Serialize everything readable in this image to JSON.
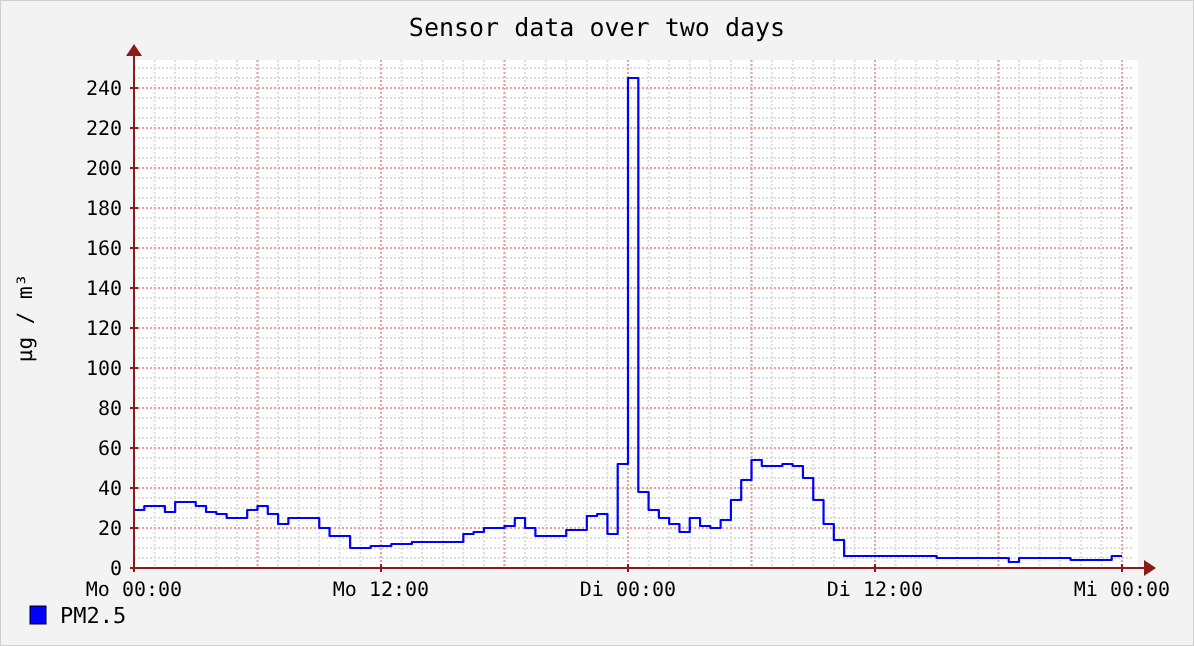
{
  "chart_data": {
    "type": "step",
    "title": "Sensor data over two days",
    "ylabel": "µg / m³",
    "categories": [
      "Mo 00:00",
      null,
      null,
      null,
      null,
      null,
      null,
      null,
      null,
      null,
      null,
      null,
      null,
      null,
      null,
      null,
      null,
      null,
      null,
      null,
      null,
      null,
      null,
      null,
      "Mo 12:00",
      null,
      null,
      null,
      null,
      null,
      null,
      null,
      null,
      null,
      null,
      null,
      null,
      null,
      null,
      null,
      null,
      null,
      null,
      null,
      null,
      null,
      null,
      null,
      "Di 00:00",
      null,
      null,
      null,
      null,
      null,
      null,
      null,
      null,
      null,
      null,
      null,
      null,
      null,
      null,
      null,
      null,
      null,
      null,
      null,
      null,
      null,
      null,
      null,
      "Di 12:00",
      null,
      null,
      null,
      null,
      null,
      null,
      null,
      null,
      null,
      null,
      null,
      null,
      null,
      null,
      null,
      null,
      null,
      null,
      null,
      null,
      null,
      null,
      null,
      "Mi 00:00"
    ],
    "series": [
      {
        "name": "PM2.5",
        "color": "#0000ff",
        "values": [
          29,
          31,
          31,
          28,
          33,
          33,
          31,
          28,
          27,
          25,
          25,
          29,
          31,
          27,
          22,
          25,
          25,
          25,
          20,
          16,
          16,
          10,
          10,
          11,
          11,
          12,
          12,
          13,
          13,
          13,
          13,
          13,
          17,
          18,
          20,
          20,
          21,
          25,
          20,
          16,
          16,
          16,
          19,
          19,
          26,
          27,
          17,
          52,
          245,
          38,
          29,
          25,
          22,
          18,
          25,
          21,
          20,
          24,
          34,
          44,
          54,
          51,
          51,
          52,
          51,
          45,
          34,
          22,
          14,
          6,
          6,
          6,
          6,
          6,
          6,
          6,
          6,
          6,
          5,
          5,
          5,
          5,
          5,
          5,
          5,
          3,
          5,
          5,
          5,
          5,
          5,
          4,
          4,
          4,
          4,
          6,
          6
        ]
      }
    ],
    "ylim": [
      0,
      250
    ],
    "yticks": [
      0,
      20,
      40,
      60,
      80,
      100,
      120,
      140,
      160,
      180,
      200,
      220,
      240
    ],
    "grid": true,
    "legend": "bottom left"
  }
}
